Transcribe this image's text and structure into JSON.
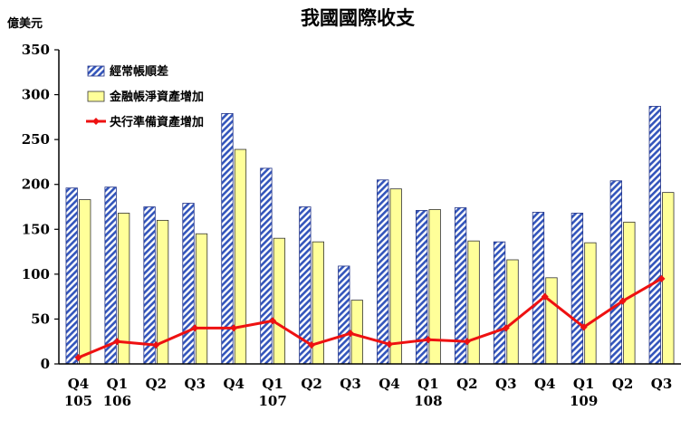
{
  "chart_data": {
    "type": "bar",
    "title": "我國國際收支",
    "ylabel": "億美元",
    "xlabel": "",
    "ylim": [
      0,
      350
    ],
    "yticks": [
      0,
      50,
      100,
      150,
      200,
      250,
      300,
      350
    ],
    "grid": false,
    "legend_position": "top-left",
    "categories": [
      "Q4",
      "Q1",
      "Q2",
      "Q3",
      "Q4",
      "Q1",
      "Q2",
      "Q3",
      "Q4",
      "Q1",
      "Q2",
      "Q3",
      "Q4",
      "Q1",
      "Q2",
      "Q3"
    ],
    "year_labels": [
      "105",
      "106",
      "",
      "",
      "",
      "107",
      "",
      "",
      "",
      "108",
      "",
      "",
      "",
      "109",
      "",
      ""
    ],
    "series": [
      {
        "name": "經常帳順差",
        "kind": "bar",
        "style": "hatched",
        "color": "#3355bb",
        "values": [
          196,
          197,
          175,
          179,
          279,
          218,
          175,
          109,
          205,
          171,
          174,
          136,
          169,
          168,
          204,
          287
        ]
      },
      {
        "name": "金融帳淨資產增加",
        "kind": "bar",
        "color": "#ffff99",
        "values": [
          183,
          168,
          160,
          145,
          239,
          140,
          136,
          71,
          195,
          172,
          137,
          116,
          96,
          135,
          158,
          191
        ]
      },
      {
        "name": "央行準備資產增加",
        "kind": "line",
        "color": "#ee1111",
        "values": [
          7,
          25,
          21,
          40,
          40,
          48,
          21,
          34,
          22,
          27,
          25,
          40,
          75,
          41,
          70,
          95
        ]
      }
    ]
  }
}
